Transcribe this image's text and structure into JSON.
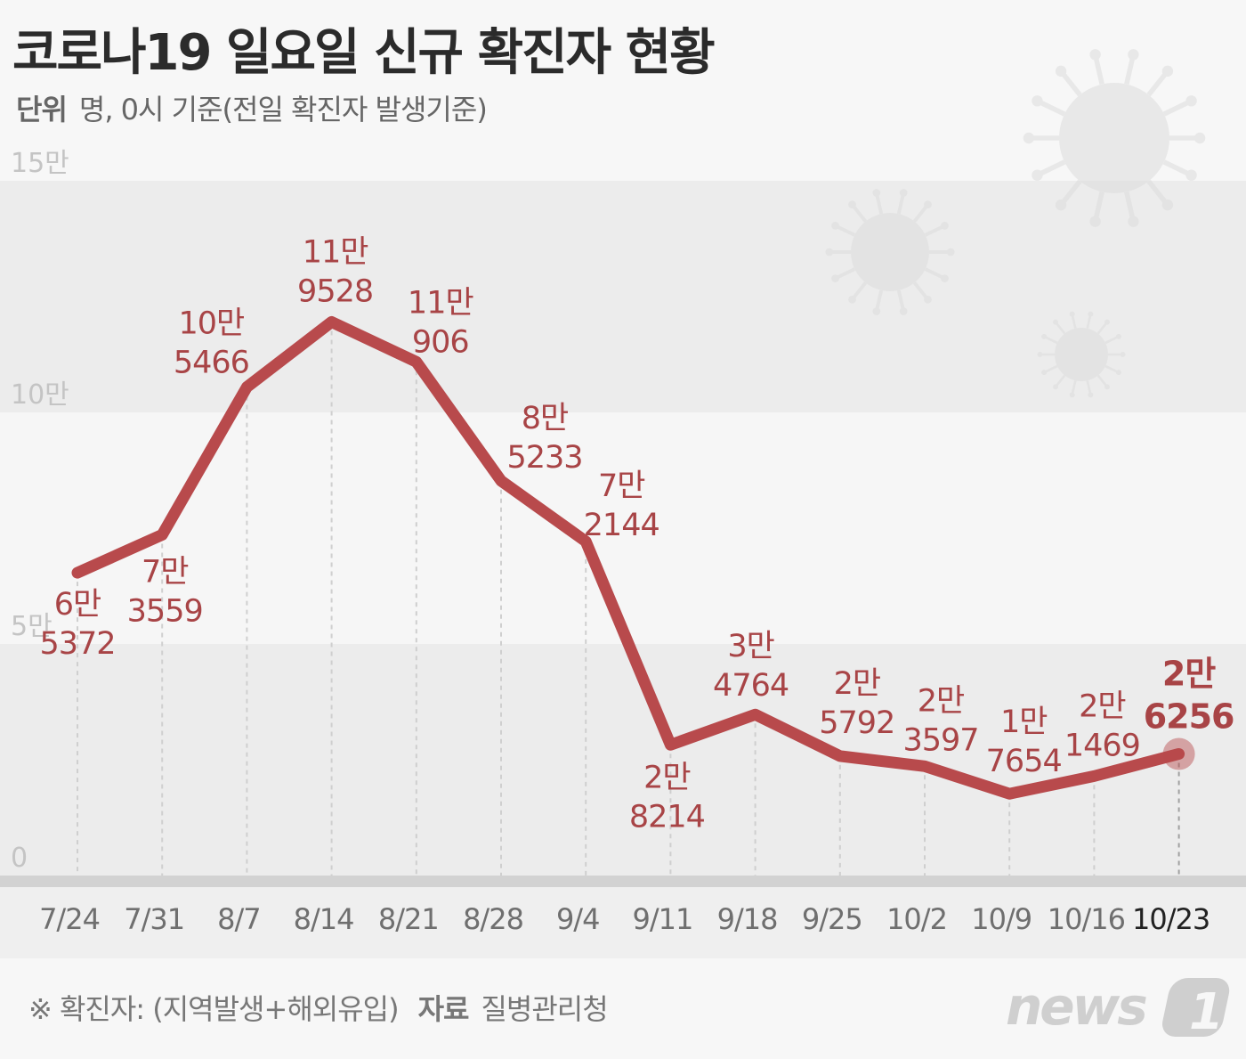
{
  "header": {
    "title": "코로나19 일요일 신규 확진자 현황",
    "unit_label": "단위",
    "unit_text": "명, 0시 기준(전일 확진자 발생기준)"
  },
  "footer": {
    "note": "※ 확진자: (지역발생+해외유입)",
    "source_label": "자료",
    "source": "질병관리청",
    "logo": "news1"
  },
  "colors": {
    "line": "#b84a4c",
    "label": "#a84446",
    "band_dark": "#ececec",
    "band_light": "#f6f6f6"
  },
  "chart_data": {
    "type": "line",
    "categories": [
      "7/24",
      "7/31",
      "8/7",
      "8/14",
      "8/21",
      "8/28",
      "9/4",
      "9/11",
      "9/18",
      "9/25",
      "10/2",
      "10/9",
      "10/16",
      "10/23"
    ],
    "values": [
      65372,
      73559,
      105466,
      119528,
      110906,
      85233,
      72144,
      28214,
      34764,
      25792,
      23597,
      17654,
      21469,
      26256
    ],
    "data_labels": [
      [
        "6만",
        "5372"
      ],
      [
        "7만",
        "3559"
      ],
      [
        "10만",
        "5466"
      ],
      [
        "11만",
        "9528"
      ],
      [
        "11만",
        "906"
      ],
      [
        "8만",
        "5233"
      ],
      [
        "7만",
        "2144"
      ],
      [
        "2만",
        "8214"
      ],
      [
        "3만",
        "4764"
      ],
      [
        "2만",
        "5792"
      ],
      [
        "2만",
        "3597"
      ],
      [
        "1만",
        "7654"
      ],
      [
        "2만",
        "1469"
      ],
      [
        "2만",
        "6256"
      ]
    ],
    "y_ticks": [
      "0",
      "5만",
      "10만",
      "15만"
    ],
    "y_tick_values": [
      0,
      50000,
      100000,
      150000
    ],
    "ylim": [
      0,
      150000
    ],
    "highlight": "10/23",
    "grid": false
  }
}
